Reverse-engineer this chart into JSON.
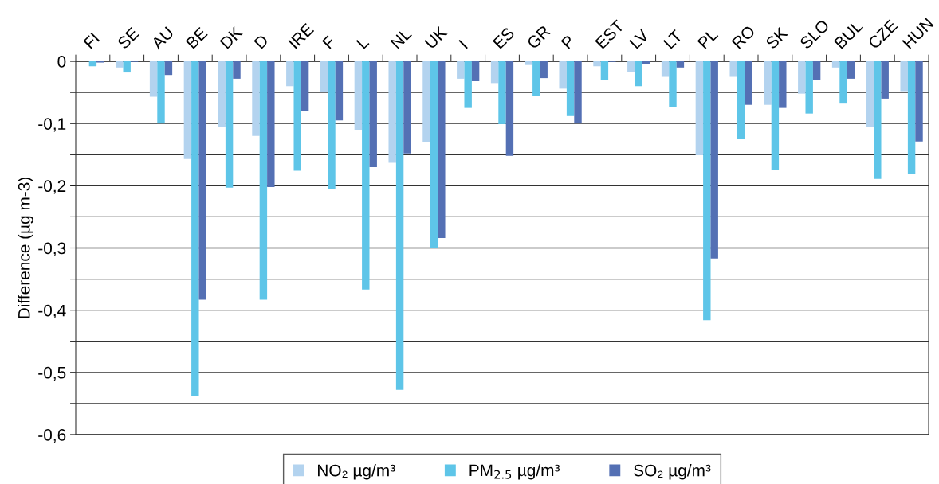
{
  "chart_data": {
    "type": "bar",
    "ylabel": "Difference (µg m-3)",
    "categories": [
      "FI",
      "SE",
      "AU",
      "BE",
      "DK",
      "D",
      "IRE",
      "F",
      "L",
      "NL",
      "UK",
      "I",
      "ES",
      "GR",
      "P",
      "EST",
      "LV",
      "LT",
      "PL",
      "RO",
      "SK",
      "SLO",
      "BUL",
      "CZE",
      "HUN"
    ],
    "series": [
      {
        "name": "NO₂ µg/m³",
        "color": "#b3d3ef",
        "values": [
          null,
          -0.01,
          -0.057,
          -0.157,
          -0.105,
          -0.12,
          -0.04,
          -0.05,
          -0.11,
          -0.163,
          -0.13,
          -0.028,
          -0.035,
          -0.006,
          -0.044,
          -0.008,
          -0.017,
          -0.025,
          -0.151,
          -0.025,
          -0.07,
          -0.052,
          -0.01,
          -0.105,
          -0.048
        ]
      },
      {
        "name": "PM$_{2.5}$ µg/m³",
        "color": "#5ec5e8",
        "values": [
          -0.008,
          -0.018,
          -0.1,
          -0.538,
          -0.203,
          -0.383,
          -0.176,
          -0.205,
          -0.367,
          -0.528,
          -0.3,
          -0.075,
          -0.101,
          -0.056,
          -0.088,
          -0.03,
          -0.04,
          -0.074,
          -0.416,
          -0.125,
          -0.174,
          -0.084,
          -0.068,
          -0.189,
          -0.181
        ]
      },
      {
        "name": "SO₂ µg/m³",
        "color": "#5470b4",
        "values": [
          -0.002,
          -0.001,
          -0.022,
          -0.383,
          -0.028,
          -0.202,
          -0.08,
          -0.095,
          -0.17,
          -0.148,
          -0.284,
          -0.032,
          -0.152,
          -0.027,
          -0.1,
          -0.001,
          -0.004,
          -0.01,
          -0.317,
          -0.07,
          -0.075,
          -0.03,
          -0.028,
          -0.06,
          -0.129
        ]
      }
    ],
    "ylim": [
      -0.6,
      0
    ],
    "yticks": [
      {
        "value": 0,
        "label": "0"
      },
      {
        "value": -0.05,
        "label": null
      },
      {
        "value": -0.1,
        "label": "-0,1"
      },
      {
        "value": -0.15,
        "label": null
      },
      {
        "value": -0.2,
        "label": "-0,2"
      },
      {
        "value": -0.25,
        "label": null
      },
      {
        "value": -0.3,
        "label": "-0,3"
      },
      {
        "value": -0.35,
        "label": null
      },
      {
        "value": -0.4,
        "label": "-0,4"
      },
      {
        "value": -0.45,
        "label": null
      },
      {
        "value": -0.5,
        "label": "-0,5"
      },
      {
        "value": -0.55,
        "label": null
      },
      {
        "value": -0.6,
        "label": "-0,6"
      }
    ],
    "grid": "y",
    "legend": "bottom"
  }
}
